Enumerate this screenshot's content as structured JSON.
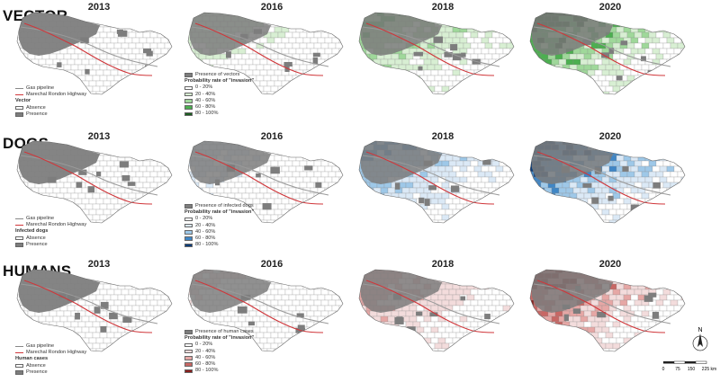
{
  "rows": [
    {
      "title": "VECTOR",
      "years": [
        "2013",
        "2016",
        "2018",
        "2020"
      ],
      "highlight": "#2e8b2e",
      "base_legend": {
        "gas_pipeline": "Gas pipeline",
        "highway": "Marechal Rondon Highway",
        "heading": "Vector",
        "absence": "Absence",
        "presence": "Presence"
      },
      "prob_legend": {
        "presence_label": "Presence of vectors",
        "heading": "Probability rate of \"invasion\"",
        "classes": [
          "0 - 20%",
          "20 - 40%",
          "40 - 60%",
          "60 - 80%",
          "80 - 100%"
        ],
        "colors": [
          "#ffffff",
          "#d8efd3",
          "#9fd89a",
          "#4caf50",
          "#1b5e20"
        ]
      },
      "intensity": [
        0.0,
        0.35,
        0.7,
        1.0
      ]
    },
    {
      "title": "DOGS",
      "years": [
        "2013",
        "2016",
        "2018",
        "2020"
      ],
      "highlight": "#3a7fc1",
      "base_legend": {
        "gas_pipeline": "Gas pipeline",
        "highway": "Marechal Rondon Highway",
        "heading": "Infected dogs",
        "absence": "Absence",
        "presence": "Presence"
      },
      "prob_legend": {
        "presence_label": "Presence of infected dogs",
        "heading": "Probability rate of \"invasion\"",
        "classes": [
          "0 - 20%",
          "20 - 40%",
          "40 - 60%",
          "60 - 80%",
          "80 - 100%"
        ],
        "colors": [
          "#ffffff",
          "#dbe9f6",
          "#9ec8e8",
          "#3f86c6",
          "#0b3c7a"
        ]
      },
      "intensity": [
        0.0,
        0.3,
        0.7,
        1.0
      ]
    },
    {
      "title": "HUMANS",
      "years": [
        "2013",
        "2016",
        "2018",
        "2020"
      ],
      "highlight": "#c0504d",
      "base_legend": {
        "gas_pipeline": "Gas pipeline",
        "highway": "Marechal Rondon Highway",
        "heading": "Human cases",
        "absence": "Absence",
        "presence": "Presence"
      },
      "prob_legend": {
        "presence_label": "Presence of human cases",
        "heading": "Probability rate of \"invasion\"",
        "classes": [
          "0 - 20%",
          "20 - 40%",
          "40 - 60%",
          "60 - 80%",
          "80 - 100%"
        ],
        "colors": [
          "#ffffff",
          "#f3dcdc",
          "#e6a7a5",
          "#c86764",
          "#8b1f1c"
        ]
      },
      "intensity": [
        0.0,
        0.25,
        0.6,
        0.95
      ]
    }
  ],
  "north_label": "N",
  "scale_ticks": [
    "0",
    "75",
    "150",
    "225 km"
  ],
  "colors": {
    "presence": "#7d7d7d",
    "pipeline": "#9a9a9a",
    "highway": "#d0363a",
    "border": "#8a8a8a"
  }
}
